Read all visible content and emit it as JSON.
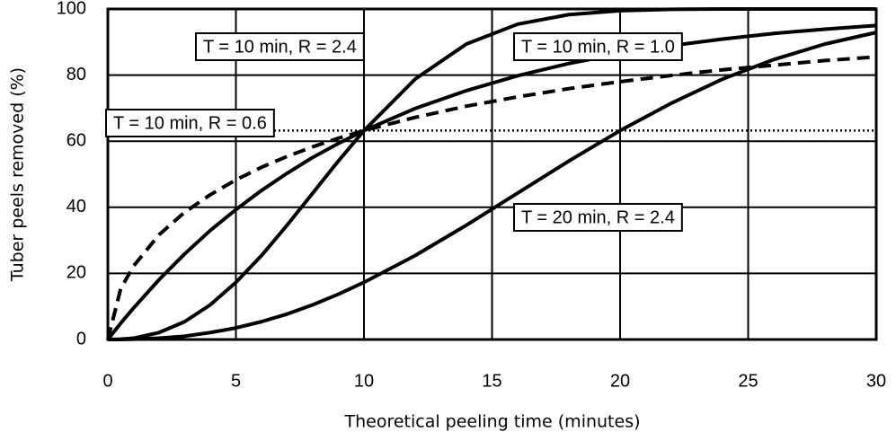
{
  "chart_data": {
    "type": "line",
    "x_label": "Theoretical peeling time (minutes)",
    "y_label": "Tuber peels removed (%)",
    "x": [
      0,
      0.5,
      1,
      2,
      3,
      4,
      5,
      6,
      7,
      8,
      9,
      10,
      12,
      14,
      16,
      18,
      20,
      22,
      24,
      26,
      28,
      30
    ],
    "series": [
      {
        "name": "T = 10 min, R = 2.4",
        "color": "#000000",
        "dash": "solid",
        "values": [
          0,
          0.1,
          0.4,
          2.1,
          5.4,
          10.5,
          17.3,
          25.4,
          34.6,
          44.3,
          54.0,
          63.2,
          78.8,
          89.4,
          95.4,
          98.3,
          99.5,
          99.9,
          100,
          100,
          100,
          100
        ]
      },
      {
        "name": "T = 10 min, R = 1.0",
        "color": "#000000",
        "dash": "solid",
        "values": [
          0,
          4.9,
          9.5,
          18.1,
          25.9,
          33.0,
          39.3,
          45.1,
          50.3,
          55.1,
          59.3,
          63.2,
          69.9,
          75.3,
          79.8,
          83.5,
          86.5,
          88.9,
          90.9,
          92.6,
          93.9,
          95.0
        ]
      },
      {
        "name": "T = 10 min, R = 0.6",
        "color": "#000000",
        "dash": "dashed",
        "values": [
          0,
          15.3,
          22.2,
          31.7,
          38.5,
          43.8,
          48.3,
          52.1,
          55.4,
          58.3,
          60.9,
          63.2,
          67.2,
          70.6,
          73.4,
          75.9,
          78.0,
          79.9,
          81.6,
          83.0,
          84.4,
          85.5
        ]
      },
      {
        "name": "T = 20 min, R = 2.4",
        "color": "#000000",
        "dash": "solid",
        "values": [
          0,
          0,
          0.1,
          0.4,
          1.0,
          2.1,
          3.5,
          5.4,
          7.7,
          10.5,
          13.7,
          17.3,
          25.4,
          34.6,
          44.3,
          54.0,
          63.2,
          71.5,
          78.8,
          84.7,
          89.4,
          92.9
        ]
      }
    ],
    "reference_line": 63.2,
    "xlim": [
      0,
      30
    ],
    "xticks": [
      0,
      5,
      10,
      15,
      20,
      25,
      30
    ],
    "ylim": [
      0,
      100
    ],
    "yticks": [
      0,
      20,
      40,
      60,
      80,
      100
    ],
    "grid": true
  }
}
